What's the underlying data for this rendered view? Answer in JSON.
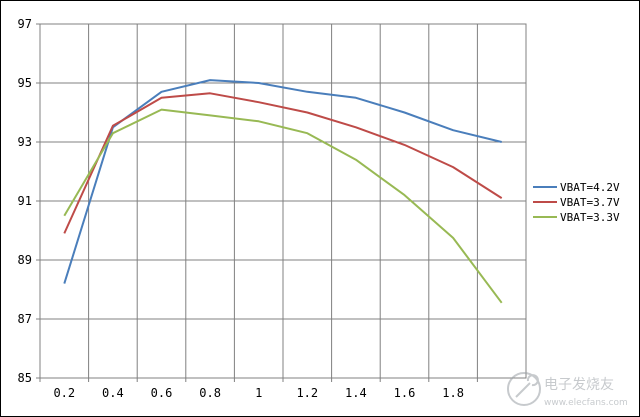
{
  "chart_data": {
    "type": "line",
    "title": "",
    "xlabel": "",
    "ylabel": "",
    "categories": [
      "0.2",
      "0.4",
      "0.6",
      "0.8",
      "1",
      "1.2",
      "1.4",
      "1.6",
      "1.8",
      ""
    ],
    "x_tick_labels": [
      "0.2",
      "0.4",
      "0.6",
      "0.8",
      "1",
      "1.2",
      "1.4",
      "1.6",
      "1.8",
      ""
    ],
    "y_ticks": [
      85,
      87,
      89,
      91,
      93,
      95,
      97
    ],
    "ylim": [
      85,
      97
    ],
    "grid": true,
    "legend_position": "right",
    "series": [
      {
        "name": "VBAT=4.2V",
        "color": "#4a7ebb",
        "values": [
          88.2,
          93.5,
          94.7,
          95.1,
          95.0,
          94.7,
          94.5,
          94.0,
          93.4,
          93.0
        ]
      },
      {
        "name": "VBAT=3.7V",
        "color": "#be4b48",
        "values": [
          89.9,
          93.55,
          94.5,
          94.65,
          94.35,
          94.0,
          93.5,
          92.9,
          92.15,
          91.1
        ]
      },
      {
        "name": "VBAT=3.3V",
        "color": "#98b954",
        "values": [
          90.5,
          93.3,
          94.1,
          93.9,
          93.7,
          93.3,
          92.4,
          91.2,
          89.75,
          87.55
        ]
      }
    ]
  },
  "watermark": {
    "text": "电子发烧友",
    "site": "www.elecfans.com",
    "icon": "wrench-gear-icon"
  }
}
